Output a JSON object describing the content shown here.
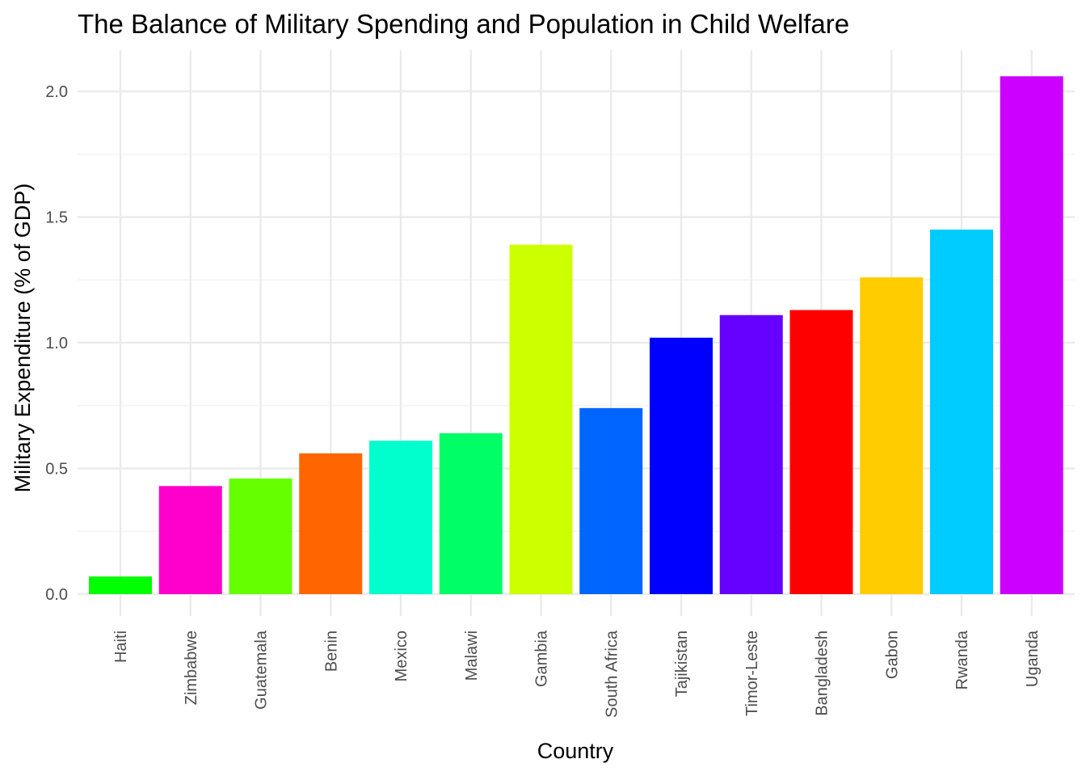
{
  "chart_data": {
    "type": "bar",
    "title": "The Balance of Military Spending and Population in Child Welfare",
    "xlabel": "Country",
    "ylabel": "Military Expenditure (% of GDP)",
    "categories": [
      "Haiti",
      "Zimbabwe",
      "Guatemala",
      "Benin",
      "Mexico",
      "Malawi",
      "Gambia",
      "South Africa",
      "Tajikistan",
      "Timor-Leste",
      "Bangladesh",
      "Gabon",
      "Rwanda",
      "Uganda"
    ],
    "values": [
      0.07,
      0.43,
      0.46,
      0.56,
      0.61,
      0.64,
      1.39,
      0.74,
      1.02,
      1.11,
      1.13,
      1.26,
      1.45,
      2.06
    ],
    "colors": [
      "#00ff00",
      "#ff00cc",
      "#66ff00",
      "#ff6600",
      "#00ffcc",
      "#00ff66",
      "#ccff00",
      "#0066ff",
      "#0000ff",
      "#6600ff",
      "#ff0000",
      "#ffcc00",
      "#00ccff",
      "#cc00ff"
    ],
    "yticks": [
      "0.0",
      "0.5",
      "1.0",
      "1.5",
      "2.0"
    ],
    "ylim": [
      0,
      2.16
    ],
    "grid": true,
    "legend": "none"
  }
}
